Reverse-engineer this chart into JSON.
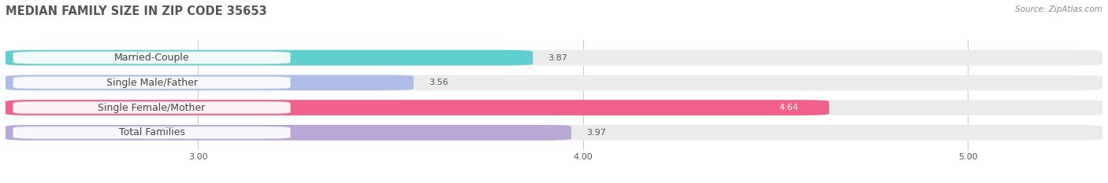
{
  "title": "MEDIAN FAMILY SIZE IN ZIP CODE 35653",
  "source": "Source: ZipAtlas.com",
  "categories": [
    "Married-Couple",
    "Single Male/Father",
    "Single Female/Mother",
    "Total Families"
  ],
  "values": [
    3.87,
    3.56,
    4.64,
    3.97
  ],
  "bar_colors": [
    "#5ecece",
    "#b0bce8",
    "#f0608a",
    "#b8a8d8"
  ],
  "bar_background_color": "#ebebeb",
  "xlim": [
    2.5,
    5.35
  ],
  "xticks": [
    3.0,
    4.0,
    5.0
  ],
  "xtick_labels": [
    "3.00",
    "4.00",
    "5.00"
  ],
  "bar_height": 0.62,
  "title_fontsize": 10.5,
  "source_fontsize": 7.5,
  "value_fontsize": 8,
  "category_fontsize": 9,
  "background_color": "#ffffff",
  "grid_color": "#cccccc",
  "title_color": "#555555",
  "source_color": "#888888",
  "value_color_default": "#555555",
  "value_color_white": "#ffffff",
  "pill_facecolor": "#ffffff",
  "pill_alpha": 0.92
}
